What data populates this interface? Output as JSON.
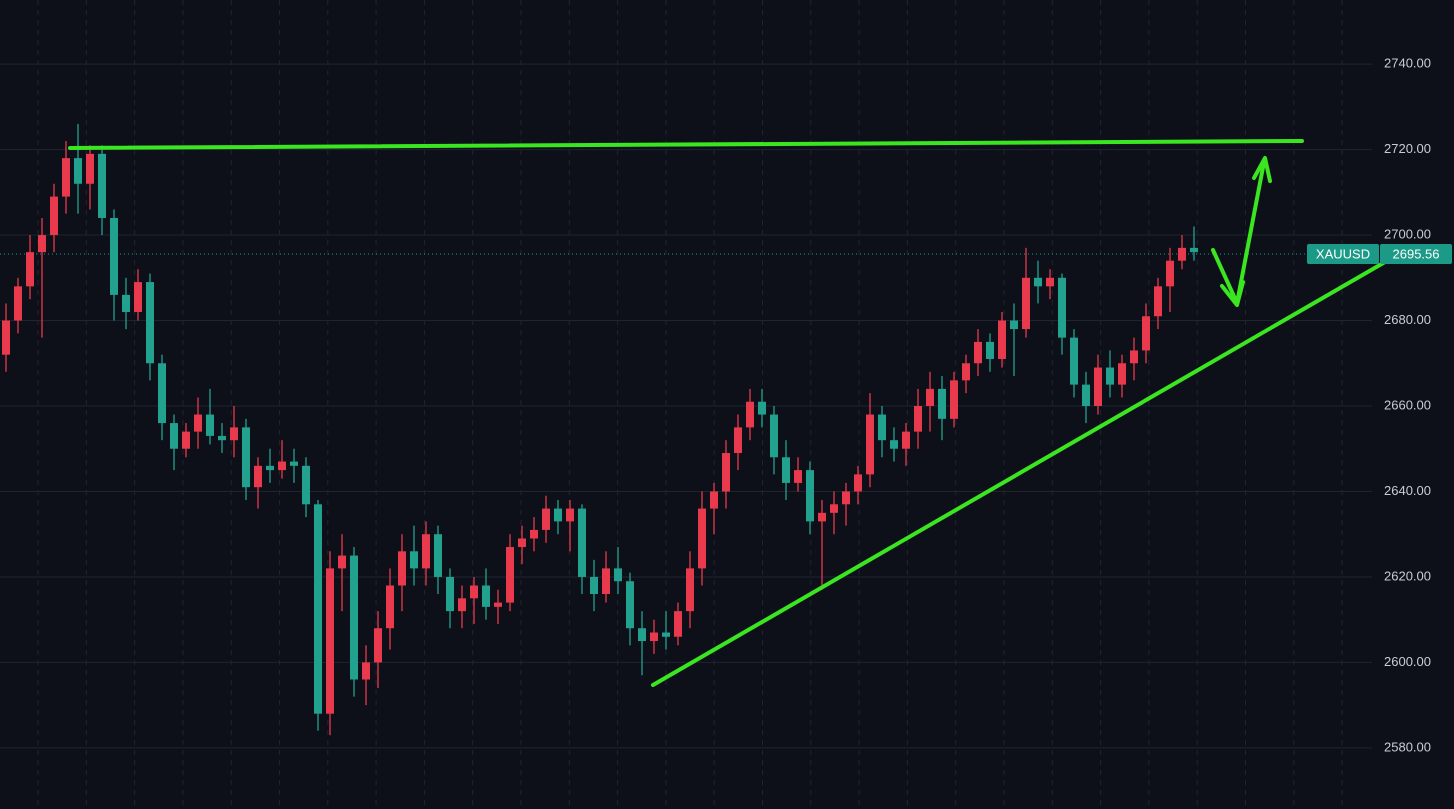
{
  "chart_data": {
    "type": "candlestick",
    "up_color": "#e8394d",
    "down_color": "#22a18f",
    "ylim": [
      2565.7,
      2755
    ],
    "yticks": [
      {
        "value": 2580,
        "label": "2580.00"
      },
      {
        "value": 2600,
        "label": "2600.00"
      },
      {
        "value": 2620,
        "label": "2620.00"
      },
      {
        "value": 2640,
        "label": "2640.00"
      },
      {
        "value": 2660,
        "label": "2660.00"
      },
      {
        "value": 2680,
        "label": "2680.00"
      },
      {
        "value": 2700,
        "label": "2700.00"
      },
      {
        "value": 2720,
        "label": "2720.00"
      },
      {
        "value": 2740,
        "label": "2740.00"
      }
    ],
    "grid": true,
    "last_price": {
      "symbol": "XAUUSD",
      "value": 2695.56,
      "color": "#1b9a88"
    },
    "open": [
      2672,
      2680,
      2688,
      2696,
      2700,
      2709,
      2718,
      2712,
      2719,
      2704,
      2686,
      2682,
      2689,
      2670,
      2656,
      2650,
      2654,
      2658,
      2653,
      2652,
      2655,
      2641,
      2646,
      2645,
      2647,
      2646,
      2637,
      2588,
      2622,
      2625,
      2596,
      2600,
      2608,
      2618,
      2626,
      2622,
      2630,
      2620,
      2612,
      2615,
      2618,
      2613,
      2614,
      2627,
      2629,
      2631,
      2636,
      2633,
      2636,
      2620,
      2616,
      2622,
      2619,
      2608,
      2605,
      2607,
      2606,
      2612,
      2622,
      2636,
      2640,
      2649,
      2655,
      2661,
      2658,
      2648,
      2642,
      2645,
      2633,
      2635,
      2637,
      2640,
      2644,
      2658,
      2652,
      2650,
      2654,
      2660,
      2664,
      2657,
      2666,
      2670,
      2675,
      2671,
      2680,
      2678,
      2690,
      2688,
      2690,
      2676,
      2665,
      2660,
      2669,
      2665,
      2670,
      2673,
      2681,
      2688,
      2694,
      2697
    ],
    "high": [
      2684,
      2690,
      2700,
      2704,
      2712,
      2722,
      2726,
      2721,
      2721,
      2706,
      2690,
      2692,
      2691,
      2672,
      2658,
      2656,
      2662,
      2664,
      2656,
      2660,
      2657,
      2648,
      2650,
      2652,
      2650,
      2648,
      2638,
      2626,
      2630,
      2627,
      2604,
      2612,
      2622,
      2630,
      2632,
      2633,
      2632,
      2622,
      2618,
      2620,
      2622,
      2617,
      2630,
      2632,
      2634,
      2639,
      2638,
      2638,
      2637,
      2624,
      2626,
      2627,
      2621,
      2612,
      2610,
      2612,
      2614,
      2626,
      2640,
      2642,
      2652,
      2658,
      2664,
      2664,
      2660,
      2652,
      2648,
      2647,
      2638,
      2640,
      2642,
      2646,
      2663,
      2660,
      2655,
      2656,
      2664,
      2668,
      2667,
      2668,
      2672,
      2678,
      2677,
      2682,
      2684,
      2697,
      2694,
      2692,
      2691,
      2678,
      2668,
      2672,
      2673,
      2672,
      2676,
      2684,
      2690,
      2697,
      2700,
      2702
    ],
    "low": [
      2668,
      2677,
      2685,
      2676,
      2696,
      2705,
      2705,
      2706,
      2700,
      2680,
      2678,
      2680,
      2666,
      2652,
      2645,
      2648,
      2650,
      2651,
      2649,
      2648,
      2638,
      2636,
      2642,
      2643,
      2642,
      2634,
      2584,
      2583,
      2612,
      2592,
      2590,
      2594,
      2603,
      2612,
      2618,
      2618,
      2616,
      2608,
      2608,
      2609,
      2610,
      2609,
      2612,
      2623,
      2626,
      2628,
      2630,
      2626,
      2616,
      2612,
      2614,
      2616,
      2604,
      2597,
      2602,
      2603,
      2604,
      2608,
      2618,
      2630,
      2636,
      2645,
      2652,
      2655,
      2644,
      2638,
      2640,
      2630,
      2617,
      2630,
      2632,
      2637,
      2641,
      2648,
      2647,
      2646,
      2650,
      2654,
      2652,
      2655,
      2663,
      2667,
      2668,
      2669,
      2667,
      2676,
      2684,
      2685,
      2672,
      2662,
      2656,
      2658,
      2662,
      2662,
      2666,
      2670,
      2678,
      2682,
      2692,
      2694
    ],
    "close": [
      2680,
      2688,
      2696,
      2700,
      2709,
      2718,
      2712,
      2719,
      2704,
      2686,
      2682,
      2689,
      2670,
      2656,
      2650,
      2654,
      2658,
      2653,
      2652,
      2655,
      2641,
      2646,
      2645,
      2647,
      2646,
      2637,
      2588,
      2622,
      2625,
      2596,
      2600,
      2608,
      2618,
      2626,
      2622,
      2630,
      2620,
      2612,
      2615,
      2618,
      2613,
      2614,
      2627,
      2629,
      2631,
      2636,
      2633,
      2636,
      2620,
      2616,
      2622,
      2619,
      2608,
      2605,
      2607,
      2606,
      2612,
      2622,
      2636,
      2640,
      2649,
      2655,
      2661,
      2658,
      2648,
      2642,
      2645,
      2633,
      2635,
      2637,
      2640,
      2644,
      2658,
      2652,
      2650,
      2654,
      2660,
      2664,
      2657,
      2666,
      2670,
      2675,
      2671,
      2680,
      2678,
      2690,
      2688,
      2690,
      2676,
      2665,
      2660,
      2669,
      2665,
      2670,
      2673,
      2681,
      2688,
      2694,
      2697,
      2696
    ]
  }
}
